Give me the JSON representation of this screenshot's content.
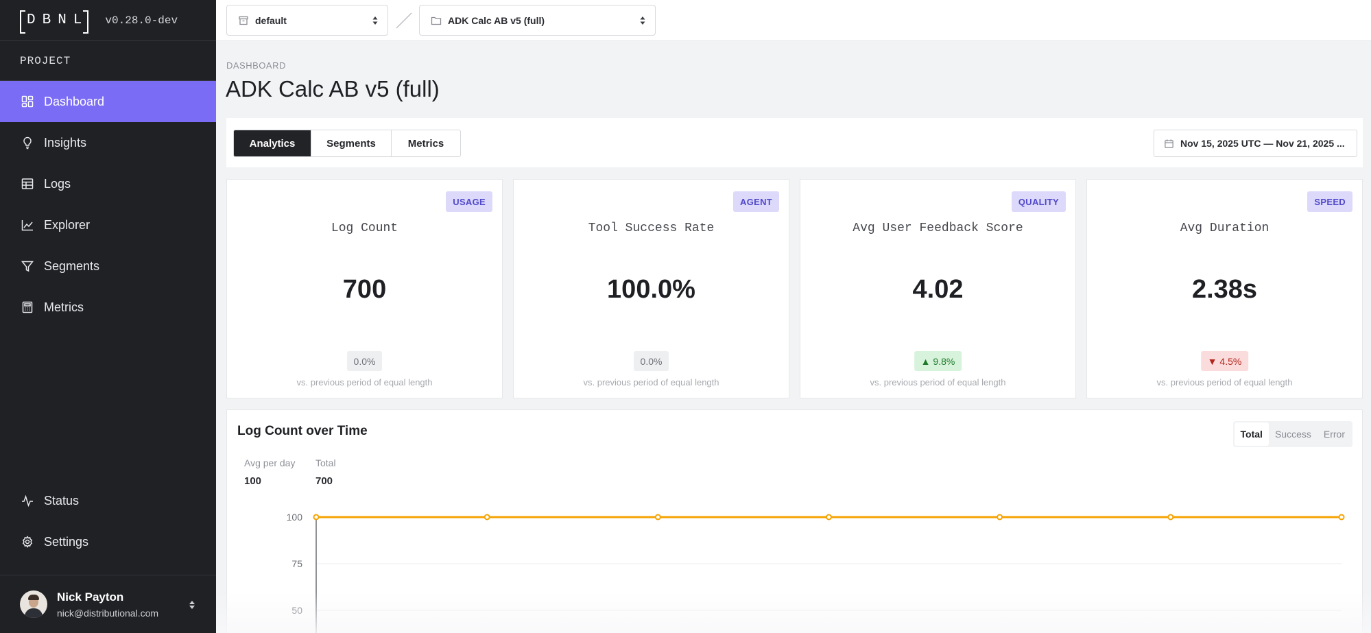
{
  "sidebar": {
    "logo": "DBNL",
    "version": "v0.28.0-dev",
    "section_label": "PROJECT",
    "items": [
      {
        "label": "Dashboard",
        "icon": "dashboard-icon",
        "active": true
      },
      {
        "label": "Insights",
        "icon": "lightbulb-icon"
      },
      {
        "label": "Logs",
        "icon": "table-icon"
      },
      {
        "label": "Explorer",
        "icon": "line-chart-icon"
      },
      {
        "label": "Segments",
        "icon": "filter-icon"
      },
      {
        "label": "Metrics",
        "icon": "calculator-icon"
      }
    ],
    "bottom_items": [
      {
        "label": "Status",
        "icon": "activity-icon"
      },
      {
        "label": "Settings",
        "icon": "gear-icon"
      }
    ],
    "user": {
      "name": "Nick Payton",
      "email": "nick@distributional.com"
    }
  },
  "topbar": {
    "namespace": "default",
    "project": "ADK Calc AB v5 (full)"
  },
  "header": {
    "eyebrow": "DASHBOARD",
    "title": "ADK Calc AB v5 (full)"
  },
  "tabs": [
    {
      "label": "Analytics",
      "active": true
    },
    {
      "label": "Segments"
    },
    {
      "label": "Metrics"
    }
  ],
  "date_range": "Nov 15, 2025 UTC — Nov 21, 2025 ...",
  "cards": [
    {
      "badge": "USAGE",
      "label": "Log Count",
      "value": "700",
      "delta": "0.0%",
      "delta_type": "neutral",
      "compare": "vs. previous period of equal length"
    },
    {
      "badge": "AGENT",
      "label": "Tool Success Rate",
      "value": "100.0%",
      "delta": "0.0%",
      "delta_type": "neutral",
      "compare": "vs. previous period of equal length"
    },
    {
      "badge": "QUALITY",
      "label": "Avg User Feedback Score",
      "value": "4.02",
      "delta": "▲ 9.8%",
      "delta_type": "up",
      "compare": "vs. previous period of equal length"
    },
    {
      "badge": "SPEED",
      "label": "Avg Duration",
      "value": "2.38s",
      "delta": "▼ 4.5%",
      "delta_type": "down",
      "compare": "vs. previous period of equal length"
    }
  ],
  "colors": {
    "accent": "#7b6cf6",
    "sidebar_bg": "#1f2125",
    "line": "#f5a300",
    "up": "#1f7a2c",
    "down": "#b3261e"
  },
  "chart": {
    "title": "Log Count over Time",
    "toggle": [
      "Total",
      "Success",
      "Error"
    ],
    "toggle_active": "Total",
    "stats": [
      {
        "label": "Avg per day",
        "value": "100"
      },
      {
        "label": "Total",
        "value": "700"
      }
    ]
  },
  "chart_data": {
    "type": "line",
    "title": "Log Count over Time",
    "series": [
      {
        "name": "Total",
        "values": [
          100,
          100,
          100,
          100,
          100,
          100,
          100
        ]
      }
    ],
    "y_ticks": [
      "100",
      "75",
      "50"
    ],
    "ylim": [
      0,
      100
    ],
    "grid": true,
    "color": "#f5a300"
  }
}
